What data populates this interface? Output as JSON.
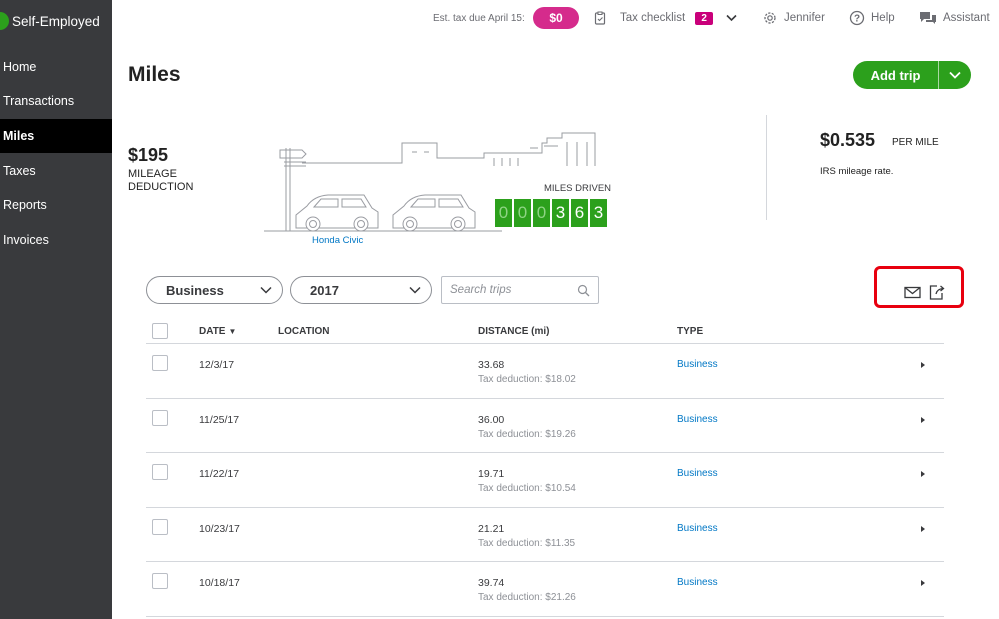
{
  "app": {
    "name": "Self-Employed"
  },
  "sidebar": {
    "items": [
      {
        "label": "Home"
      },
      {
        "label": "Transactions"
      },
      {
        "label": "Miles"
      },
      {
        "label": "Taxes"
      },
      {
        "label": "Reports"
      },
      {
        "label": "Invoices"
      }
    ]
  },
  "topbar": {
    "est_tax_label": "Est. tax due April 15:",
    "est_tax_value": "$0",
    "checklist_label": "Tax checklist",
    "checklist_count": "2",
    "user_name": "Jennifer",
    "help_label": "Help",
    "assistant_label": "Assistant"
  },
  "page": {
    "title": "Miles",
    "add_trip_label": "Add trip"
  },
  "summary": {
    "deduction_amount": "$195",
    "deduction_label": "MILEAGE DEDUCTION",
    "vehicle_name": "Honda Civic",
    "miles_label": "MILES DRIVEN",
    "odometer": [
      "0",
      "0",
      "0",
      "3",
      "6",
      "3"
    ],
    "rate_value": "$0.535",
    "rate_unit": "PER MILE",
    "rate_desc": "IRS mileage rate."
  },
  "filters": {
    "type_selected": "Business",
    "year_selected": "2017",
    "search_placeholder": "Search trips"
  },
  "table": {
    "headers": {
      "date": "DATE",
      "location": "LOCATION",
      "distance": "DISTANCE (mi)",
      "type": "TYPE"
    },
    "sort_indicator": "▼",
    "rows": [
      {
        "date": "12/3/17",
        "distance": "33.68",
        "deduction": "Tax deduction: $18.02",
        "type": "Business"
      },
      {
        "date": "11/25/17",
        "distance": "36.00",
        "deduction": "Tax deduction: $19.26",
        "type": "Business"
      },
      {
        "date": "11/22/17",
        "distance": "19.71",
        "deduction": "Tax deduction: $10.54",
        "type": "Business"
      },
      {
        "date": "10/23/17",
        "distance": "21.21",
        "deduction": "Tax deduction: $11.35",
        "type": "Business"
      },
      {
        "date": "10/18/17",
        "distance": "39.74",
        "deduction": "Tax deduction: $21.26",
        "type": "Business"
      }
    ]
  },
  "colors": {
    "brand_green": "#2ca01c",
    "sidebar_bg": "#393a3d",
    "tax_pink": "#d52b8c",
    "link_blue": "#0077c5",
    "highlight_red": "#e8000f"
  }
}
